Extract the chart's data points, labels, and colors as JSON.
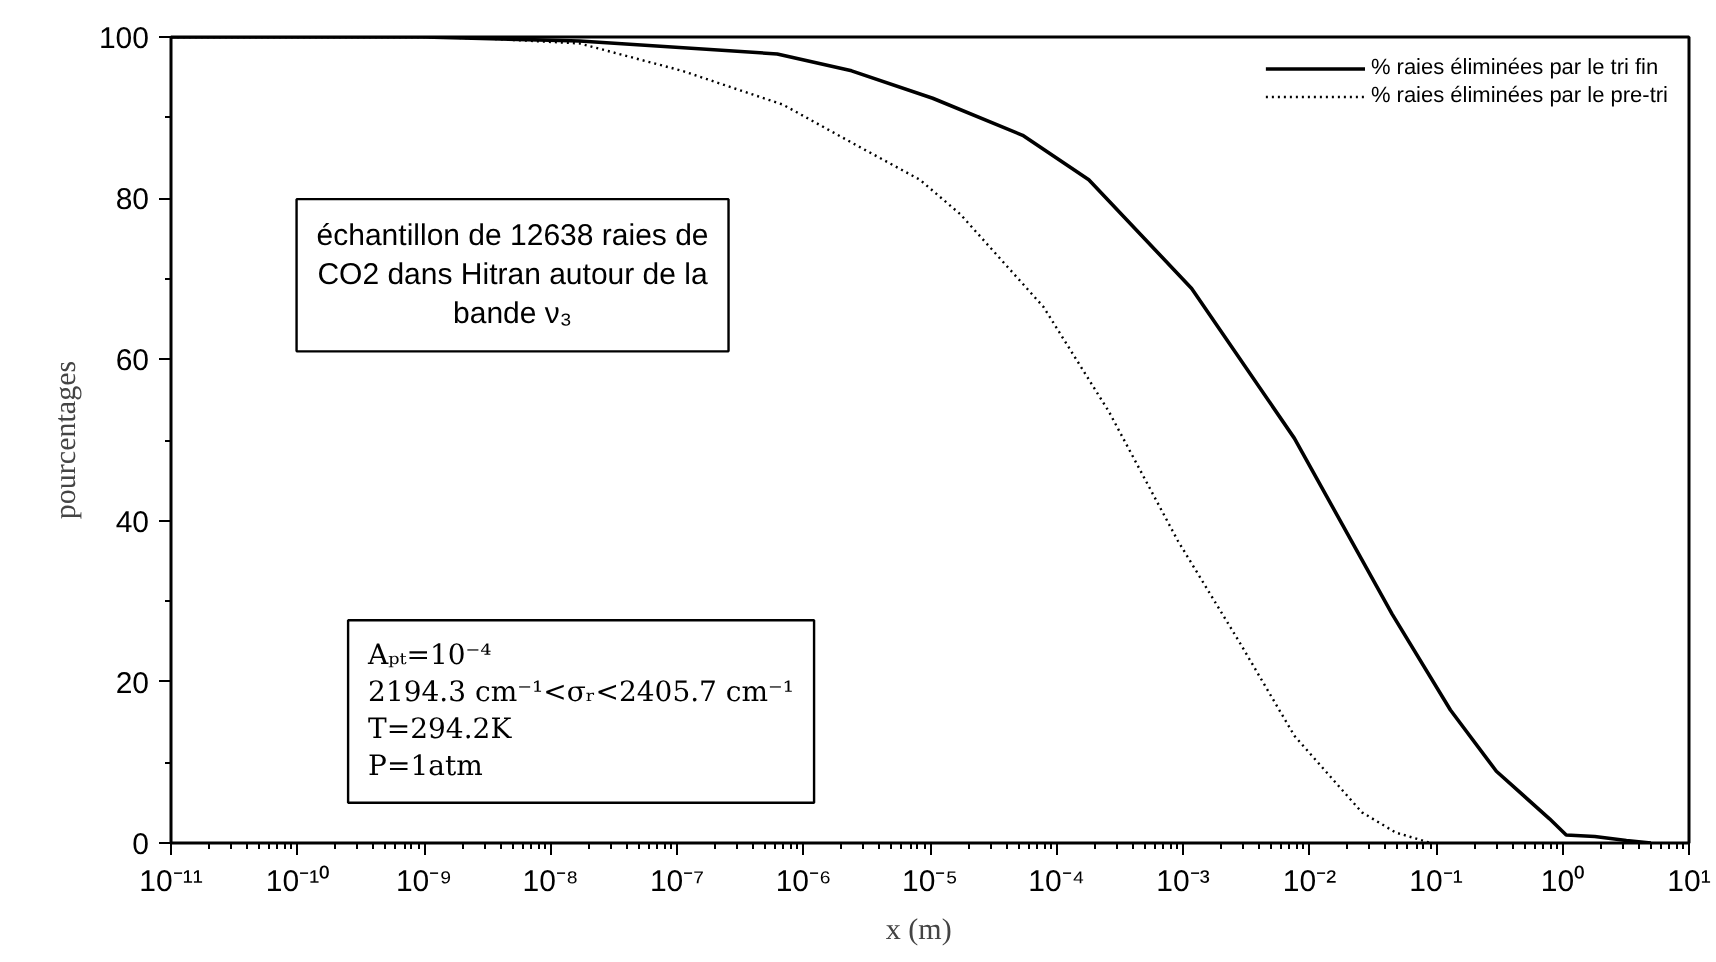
{
  "chart_data": {
    "type": "line",
    "xlabel": "x    (m)",
    "ylabel": "pourcentages",
    "log": "x",
    "grid": false,
    "legend": "top right",
    "marker": "none",
    "xlim": [
      1e-11,
      10
    ],
    "ylim": [
      0,
      100
    ],
    "xticks": [
      {
        "value": 1e-11,
        "label": "10⁻¹¹"
      },
      {
        "value": 1e-10,
        "label": "10⁻¹⁰"
      },
      {
        "value": 1e-09,
        "label": "10⁻⁹"
      },
      {
        "value": 1e-08,
        "label": "10⁻⁸"
      },
      {
        "value": 1e-07,
        "label": "10⁻⁷"
      },
      {
        "value": 1e-06,
        "label": "10⁻⁶"
      },
      {
        "value": 1e-05,
        "label": "10⁻⁵"
      },
      {
        "value": 0.0001,
        "label": "10⁻⁴"
      },
      {
        "value": 0.001,
        "label": "10⁻³"
      },
      {
        "value": 0.01,
        "label": "10⁻²"
      },
      {
        "value": 0.1,
        "label": "10⁻¹"
      },
      {
        "value": 1,
        "label": "10⁰"
      },
      {
        "value": 10,
        "label": "10¹"
      }
    ],
    "yticks": [
      0,
      20,
      40,
      60,
      80,
      100
    ],
    "series": [
      {
        "name": "% raies éliminées par le tri fin",
        "color": "#000000",
        "line_style": "solid",
        "x": [
          1e-11,
          1e-10,
          1e-09,
          1.7e-08,
          6.2e-07,
          2.4e-06,
          1.05e-05,
          5.4e-05,
          0.00018,
          0.00117,
          0.0076,
          0.045,
          0.13,
          0.3,
          0.79,
          1.07,
          1.8,
          3.2,
          5.0
        ],
        "values": [
          100,
          100,
          100,
          99.5,
          97.9,
          95.8,
          92.4,
          87.8,
          82.3,
          68.8,
          50.2,
          28.4,
          16.5,
          8.9,
          3.0,
          1.0,
          0.8,
          0.3,
          0
        ]
      },
      {
        "name": "% raies éliminées par le pre-tri",
        "color": "#000000",
        "line_style": "dotted",
        "x": [
          1e-11,
          1e-10,
          1e-09,
          3.2e-09,
          1.7e-08,
          1.1e-07,
          6.9e-07,
          2.4e-06,
          8.3e-06,
          1.74e-05,
          7.9e-05,
          0.00026,
          0.00091,
          0.0028,
          0.0076,
          0.026,
          0.048,
          0.091
        ],
        "values": [
          100,
          100,
          100,
          99.8,
          99.2,
          95.8,
          91.6,
          86.9,
          82.3,
          78.0,
          66.5,
          53.5,
          37.5,
          24.9,
          13.3,
          3.8,
          1.3,
          0
        ]
      }
    ],
    "annotations": [
      "échantillon de 12638 raies de\nCO2 dans Hitran autour de la\nbande ν₃",
      "Aₚₜ=10⁻⁴\n2194.3 cm⁻¹<σᵣ<2405.7 cm⁻¹\nT=294.2K\nP=1atm"
    ]
  }
}
